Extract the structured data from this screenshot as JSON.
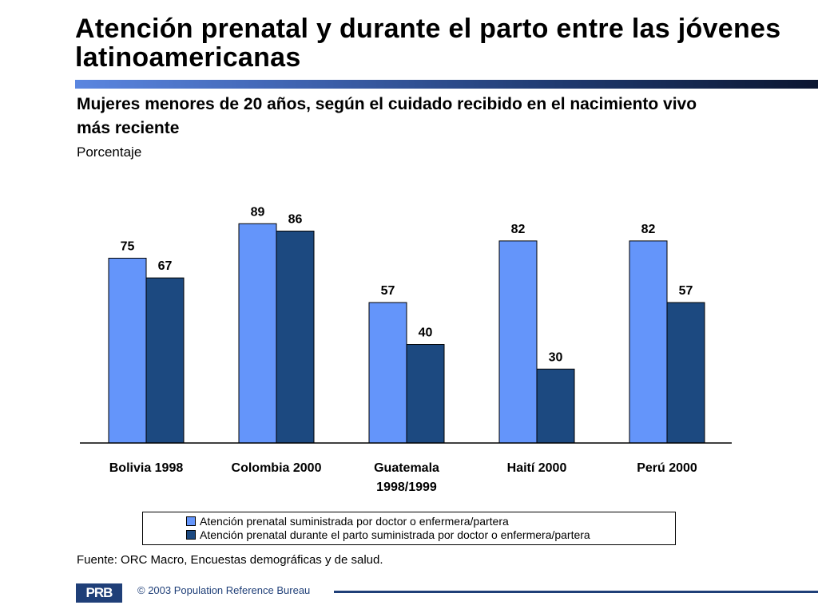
{
  "header": {
    "title": "Atención prenatal y durante el parto entre las jóvenes latinoamericanas",
    "subtitle": "Mujeres menores de 20 años, según el cuidado recibido en el nacimiento vivo más reciente",
    "unit_label": "Porcentaje"
  },
  "colors": {
    "series1": "#6495fa",
    "series2": "#1c4980",
    "accent": "#1f3f78"
  },
  "chart_data": {
    "type": "bar",
    "categories": [
      "Bolivia 1998",
      "Colombia 2000",
      "Guatemala 1998/1999",
      "Haití 2000",
      "Perú 2000"
    ],
    "series": [
      {
        "name": "Atención prenatal suministrada por doctor o enfermera/partera",
        "values": [
          75,
          89,
          57,
          82,
          82
        ]
      },
      {
        "name": "Atención prenatal durante el parto suministrada por doctor o enfermera/partera",
        "values": [
          67,
          86,
          40,
          30,
          57
        ]
      }
    ],
    "ylabel": "Porcentaje",
    "ylim": [
      0,
      100
    ],
    "grid": false,
    "legend_position": "bottom"
  },
  "legend": {
    "items": [
      "Atención prenatal suministrada por doctor o enfermera/partera",
      "Atención prenatal durante el parto suministrada por doctor o enfermera/partera"
    ]
  },
  "footer": {
    "source": "Fuente: ORC Macro, Encuestas demográficas y de salud.",
    "logo_text": "PRB",
    "copyright": "© 2003 Population Reference Bureau"
  }
}
